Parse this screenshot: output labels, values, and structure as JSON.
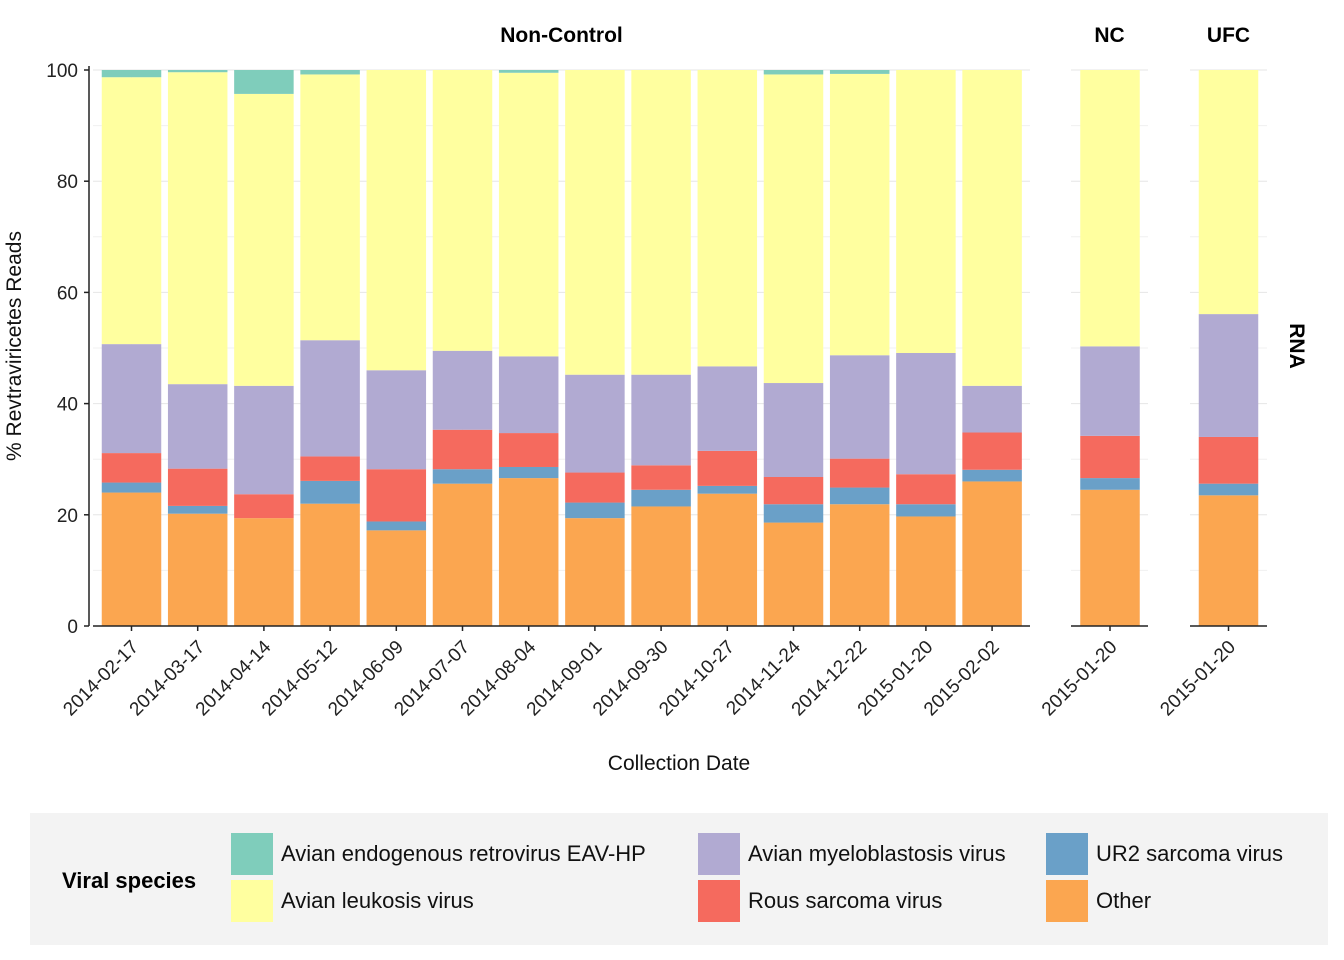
{
  "chart_data": {
    "type": "bar",
    "stacked": true,
    "ylabel": "% Revtraviricetes Reads",
    "xlabel": "Collection Date",
    "ylim": [
      0,
      100
    ],
    "yticks": [
      "0",
      "20",
      "40",
      "60",
      "80",
      "100"
    ],
    "row_strip": "RNA",
    "legend_title": "Viral species",
    "legend_position": "bottom",
    "grid": true,
    "series": [
      {
        "name": "Avian endogenous retrovirus EAV-HP",
        "color": "#7fcdbb"
      },
      {
        "name": "Avian myeloblastosis virus",
        "color": "#b1aad2"
      },
      {
        "name": "UR2 sarcoma virus",
        "color": "#6aa0c8"
      },
      {
        "name": "Avian leukosis virus",
        "color": "#ffff9f"
      },
      {
        "name": "Rous sarcoma virus",
        "color": "#f56a5e"
      },
      {
        "name": "Other",
        "color": "#fba650"
      }
    ],
    "stack_order": [
      "Other",
      "UR2 sarcoma virus",
      "Rous sarcoma virus",
      "Avian myeloblastosis virus",
      "Avian leukosis virus",
      "Avian endogenous retrovirus EAV-HP"
    ],
    "panels": [
      {
        "strip": "Non-Control",
        "categories": [
          "2014-02-17",
          "2014-03-17",
          "2014-04-14",
          "2014-05-12",
          "2014-06-09",
          "2014-07-07",
          "2014-08-04",
          "2014-09-01",
          "2014-09-30",
          "2014-10-27",
          "2014-11-24",
          "2014-12-22",
          "2015-01-20",
          "2015-02-02"
        ],
        "values": {
          "Other": [
            24.0,
            20.2,
            19.4,
            22.0,
            17.2,
            25.6,
            26.6,
            19.4,
            21.5,
            23.8,
            18.6,
            21.9,
            19.7,
            26.0
          ],
          "UR2 sarcoma virus": [
            1.8,
            1.4,
            0.0,
            4.1,
            1.6,
            2.6,
            2.0,
            2.8,
            3.0,
            1.4,
            3.3,
            3.0,
            2.2,
            2.1
          ],
          "Rous sarcoma virus": [
            5.3,
            6.7,
            4.3,
            4.4,
            9.4,
            7.1,
            6.1,
            5.4,
            4.4,
            6.3,
            4.9,
            5.2,
            5.4,
            6.7
          ],
          "Avian myeloblastosis virus": [
            19.6,
            15.2,
            19.5,
            20.9,
            17.8,
            14.2,
            13.8,
            17.6,
            16.3,
            15.2,
            16.9,
            18.6,
            21.8,
            8.4
          ],
          "Avian leukosis virus": [
            48.0,
            56.1,
            52.5,
            47.8,
            54.0,
            50.5,
            51.0,
            54.8,
            54.8,
            53.3,
            55.5,
            50.6,
            50.9,
            56.8
          ],
          "Avian endogenous retrovirus EAV-HP": [
            1.3,
            0.4,
            4.3,
            0.8,
            0.0,
            0.0,
            0.5,
            0.0,
            0.0,
            0.0,
            0.8,
            0.7,
            0.0,
            0.0
          ]
        }
      },
      {
        "strip": "NC",
        "categories": [
          "2015-01-20"
        ],
        "values": {
          "Other": [
            24.5
          ],
          "UR2 sarcoma virus": [
            2.1
          ],
          "Rous sarcoma virus": [
            7.6
          ],
          "Avian myeloblastosis virus": [
            16.1
          ],
          "Avian leukosis virus": [
            49.7
          ],
          "Avian endogenous retrovirus EAV-HP": [
            0.0
          ]
        }
      },
      {
        "strip": "UFC",
        "categories": [
          "2015-01-20"
        ],
        "values": {
          "Other": [
            23.5
          ],
          "UR2 sarcoma virus": [
            2.1
          ],
          "Rous sarcoma virus": [
            8.4
          ],
          "Avian myeloblastosis virus": [
            22.1
          ],
          "Avian leukosis virus": [
            43.9
          ],
          "Avian endogenous retrovirus EAV-HP": [
            0.0
          ]
        }
      }
    ]
  }
}
